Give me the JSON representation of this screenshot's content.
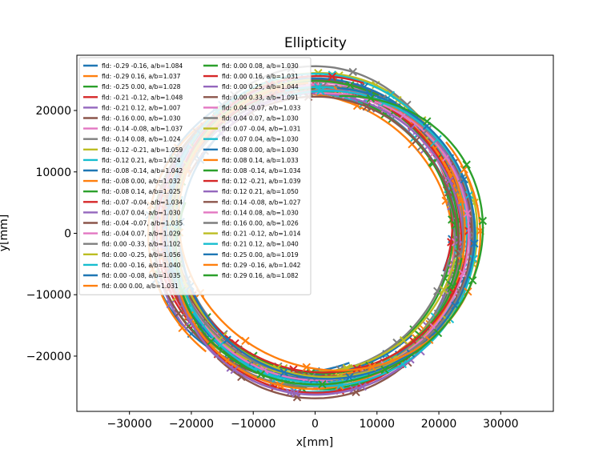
{
  "chart_data": {
    "type": "line",
    "title": "Ellipticity",
    "xlabel": "x[mm]",
    "ylabel": "y[mm]",
    "xlim": [
      -38500,
      38500
    ],
    "ylim": [
      -29000,
      29000
    ],
    "xticks": [
      -30000,
      -20000,
      -10000,
      0,
      10000,
      20000,
      30000
    ],
    "yticks": [
      -20000,
      -10000,
      0,
      10000,
      20000
    ],
    "xtick_labels": [
      "−30000",
      "−20000",
      "−10000",
      "0",
      "10000",
      "20000",
      "30000"
    ],
    "ytick_labels": [
      "−20000",
      "−10000",
      "0",
      "10000",
      "20000"
    ],
    "grid": false,
    "legend_location": "top-left",
    "legend_columns": 2,
    "base_radius": 24000,
    "series": [
      {
        "name": "fld: -0.29 -0.16, a/b=1.084",
        "fx": -0.29,
        "fy": -0.16,
        "ab": 1.084
      },
      {
        "name": "fld: -0.29 0.16, a/b=1.037",
        "fx": -0.29,
        "fy": 0.16,
        "ab": 1.037
      },
      {
        "name": "fld: -0.25 0.00, a/b=1.028",
        "fx": -0.25,
        "fy": 0.0,
        "ab": 1.028
      },
      {
        "name": "fld: -0.21 -0.12, a/b=1.048",
        "fx": -0.21,
        "fy": -0.12,
        "ab": 1.048
      },
      {
        "name": "fld: -0.21 0.12, a/b=1.007",
        "fx": -0.21,
        "fy": 0.12,
        "ab": 1.007
      },
      {
        "name": "fld: -0.16 0.00, a/b=1.030",
        "fx": -0.16,
        "fy": 0.0,
        "ab": 1.03
      },
      {
        "name": "fld: -0.14 -0.08, a/b=1.037",
        "fx": -0.14,
        "fy": -0.08,
        "ab": 1.037
      },
      {
        "name": "fld: -0.14 0.08, a/b=1.024",
        "fx": -0.14,
        "fy": 0.08,
        "ab": 1.024
      },
      {
        "name": "fld: -0.12 -0.21, a/b=1.059",
        "fx": -0.12,
        "fy": -0.21,
        "ab": 1.059
      },
      {
        "name": "fld: -0.12 0.21, a/b=1.024",
        "fx": -0.12,
        "fy": 0.21,
        "ab": 1.024
      },
      {
        "name": "fld: -0.08 -0.14, a/b=1.042",
        "fx": -0.08,
        "fy": -0.14,
        "ab": 1.042
      },
      {
        "name": "fld: -0.08 0.00, a/b=1.032",
        "fx": -0.08,
        "fy": 0.0,
        "ab": 1.032
      },
      {
        "name": "fld: -0.08 0.14, a/b=1.025",
        "fx": -0.08,
        "fy": 0.14,
        "ab": 1.025
      },
      {
        "name": "fld: -0.07 -0.04, a/b=1.034",
        "fx": -0.07,
        "fy": -0.04,
        "ab": 1.034
      },
      {
        "name": "fld: -0.07 0.04, a/b=1.030",
        "fx": -0.07,
        "fy": 0.04,
        "ab": 1.03
      },
      {
        "name": "fld: -0.04 -0.07, a/b=1.035",
        "fx": -0.04,
        "fy": -0.07,
        "ab": 1.035
      },
      {
        "name": "fld: -0.04 0.07, a/b=1.029",
        "fx": -0.04,
        "fy": 0.07,
        "ab": 1.029
      },
      {
        "name": "fld: 0.00 -0.33, a/b=1.102",
        "fx": 0.0,
        "fy": -0.33,
        "ab": 1.102
      },
      {
        "name": "fld: 0.00 -0.25, a/b=1.056",
        "fx": 0.0,
        "fy": -0.25,
        "ab": 1.056
      },
      {
        "name": "fld: 0.00 -0.16, a/b=1.040",
        "fx": 0.0,
        "fy": -0.16,
        "ab": 1.04
      },
      {
        "name": "fld: 0.00 -0.08, a/b=1.035",
        "fx": 0.0,
        "fy": -0.08,
        "ab": 1.035
      },
      {
        "name": "fld: 0.00 0.00, a/b=1.031",
        "fx": 0.0,
        "fy": 0.0,
        "ab": 1.031
      },
      {
        "name": "fld: 0.00 0.08, a/b=1.030",
        "fx": 0.0,
        "fy": 0.08,
        "ab": 1.03
      },
      {
        "name": "fld: 0.00 0.16, a/b=1.031",
        "fx": 0.0,
        "fy": 0.16,
        "ab": 1.031
      },
      {
        "name": "fld: 0.00 0.25, a/b=1.044",
        "fx": 0.0,
        "fy": 0.25,
        "ab": 1.044
      },
      {
        "name": "fld: 0.00 0.33, a/b=1.091",
        "fx": 0.0,
        "fy": 0.33,
        "ab": 1.091
      },
      {
        "name": "fld: 0.04 -0.07, a/b=1.033",
        "fx": 0.04,
        "fy": -0.07,
        "ab": 1.033
      },
      {
        "name": "fld: 0.04 0.07, a/b=1.030",
        "fx": 0.04,
        "fy": 0.07,
        "ab": 1.03
      },
      {
        "name": "fld: 0.07 -0.04, a/b=1.031",
        "fx": 0.07,
        "fy": -0.04,
        "ab": 1.031
      },
      {
        "name": "fld: 0.07 0.04, a/b=1.030",
        "fx": 0.07,
        "fy": 0.04,
        "ab": 1.03
      },
      {
        "name": "fld: 0.08 0.00, a/b=1.030",
        "fx": 0.08,
        "fy": 0.0,
        "ab": 1.03
      },
      {
        "name": "fld: 0.08 0.14, a/b=1.033",
        "fx": 0.08,
        "fy": 0.14,
        "ab": 1.033
      },
      {
        "name": "fld: 0.08 -0.14, a/b=1.034",
        "fx": 0.08,
        "fy": -0.14,
        "ab": 1.034
      },
      {
        "name": "fld: 0.12 -0.21, a/b=1.039",
        "fx": 0.12,
        "fy": -0.21,
        "ab": 1.039
      },
      {
        "name": "fld: 0.12 0.21, a/b=1.050",
        "fx": 0.12,
        "fy": 0.21,
        "ab": 1.05
      },
      {
        "name": "fld: 0.14 -0.08, a/b=1.027",
        "fx": 0.14,
        "fy": -0.08,
        "ab": 1.027
      },
      {
        "name": "fld: 0.14 0.08, a/b=1.030",
        "fx": 0.14,
        "fy": 0.08,
        "ab": 1.03
      },
      {
        "name": "fld: 0.16 0.00, a/b=1.026",
        "fx": 0.16,
        "fy": 0.0,
        "ab": 1.026
      },
      {
        "name": "fld: 0.21 -0.12, a/b=1.014",
        "fx": 0.21,
        "fy": -0.12,
        "ab": 1.014
      },
      {
        "name": "fld: 0.21 0.12, a/b=1.040",
        "fx": 0.21,
        "fy": 0.12,
        "ab": 1.04
      },
      {
        "name": "fld: 0.25 0.00, a/b=1.019",
        "fx": 0.25,
        "fy": 0.0,
        "ab": 1.019
      },
      {
        "name": "fld: 0.29 -0.16, a/b=1.042",
        "fx": 0.29,
        "fy": -0.16,
        "ab": 1.042
      },
      {
        "name": "fld: 0.29 0.16, a/b=1.082",
        "fx": 0.29,
        "fy": 0.16,
        "ab": 1.082
      }
    ]
  },
  "palette": [
    "#1f77b4",
    "#ff7f0e",
    "#2ca02c",
    "#d62728",
    "#9467bd",
    "#8c564b",
    "#e377c2",
    "#7f7f7f",
    "#bcbd22",
    "#17becf"
  ]
}
